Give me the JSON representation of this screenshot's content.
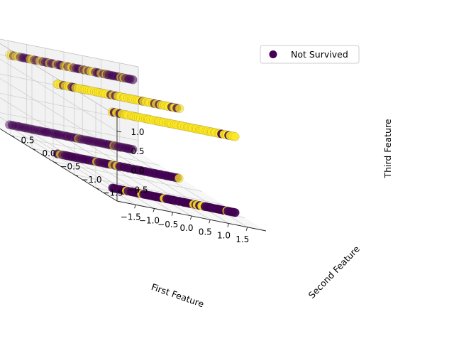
{
  "chart_data": {
    "type": "scatter3d",
    "xlabel": "First Feature",
    "ylabel": "Second Feature",
    "zlabel": "Third Feature",
    "xlim": [
      -2.0,
      2.0
    ],
    "ylim": [
      -2.0,
      1.0
    ],
    "zlim": [
      -0.8,
      1.4
    ],
    "x_ticks": [
      "1.5",
      "1.0",
      "0.5",
      "0.0",
      "−0.5",
      "−1.0",
      "−1.5"
    ],
    "y_ticks": [
      "−1.5",
      "−1.0",
      "−0.5",
      "0.0",
      "0.5"
    ],
    "z_ticks": [
      "−0.5",
      "0.0",
      "0.5",
      "1.0"
    ],
    "grid": true,
    "legend_position": "top-right",
    "legend": [
      {
        "label": "Not Survived",
        "color": "#440154"
      }
    ],
    "colors": {
      "not_survived": "#440154",
      "survived": "#fde725",
      "pane_left": "#f2f2f2",
      "pane_right": "#ebebeb",
      "pane_floor": "#f7f7f7",
      "grid": "#d0d0d0",
      "edge": "#000000"
    },
    "series": [
      {
        "name": "Not Survived",
        "class": 0,
        "color": "#440154"
      },
      {
        "class": 1,
        "color": "#fde725"
      }
    ],
    "rows": [
      {
        "y": -1.6,
        "z": 1.29,
        "x_range": [
          -1.7,
          1.65
        ],
        "survived_fraction": 0.92
      },
      {
        "y": -1.6,
        "z": -0.67,
        "x_range": [
          -1.7,
          1.65
        ],
        "survived_fraction": 0.12
      },
      {
        "y": -0.3,
        "z": 1.13,
        "x_range": [
          -1.7,
          1.65
        ],
        "survived_fraction": 0.85
      },
      {
        "y": -0.3,
        "z": -0.67,
        "x_range": [
          -1.7,
          1.65
        ],
        "survived_fraction": 0.06
      },
      {
        "y": 0.8,
        "z": 1.13,
        "x_range": [
          -1.7,
          1.65
        ],
        "survived_fraction": 0.4
      },
      {
        "y": 0.8,
        "z": -0.67,
        "x_range": [
          -1.7,
          1.65
        ],
        "survived_fraction": 0.03
      }
    ]
  }
}
